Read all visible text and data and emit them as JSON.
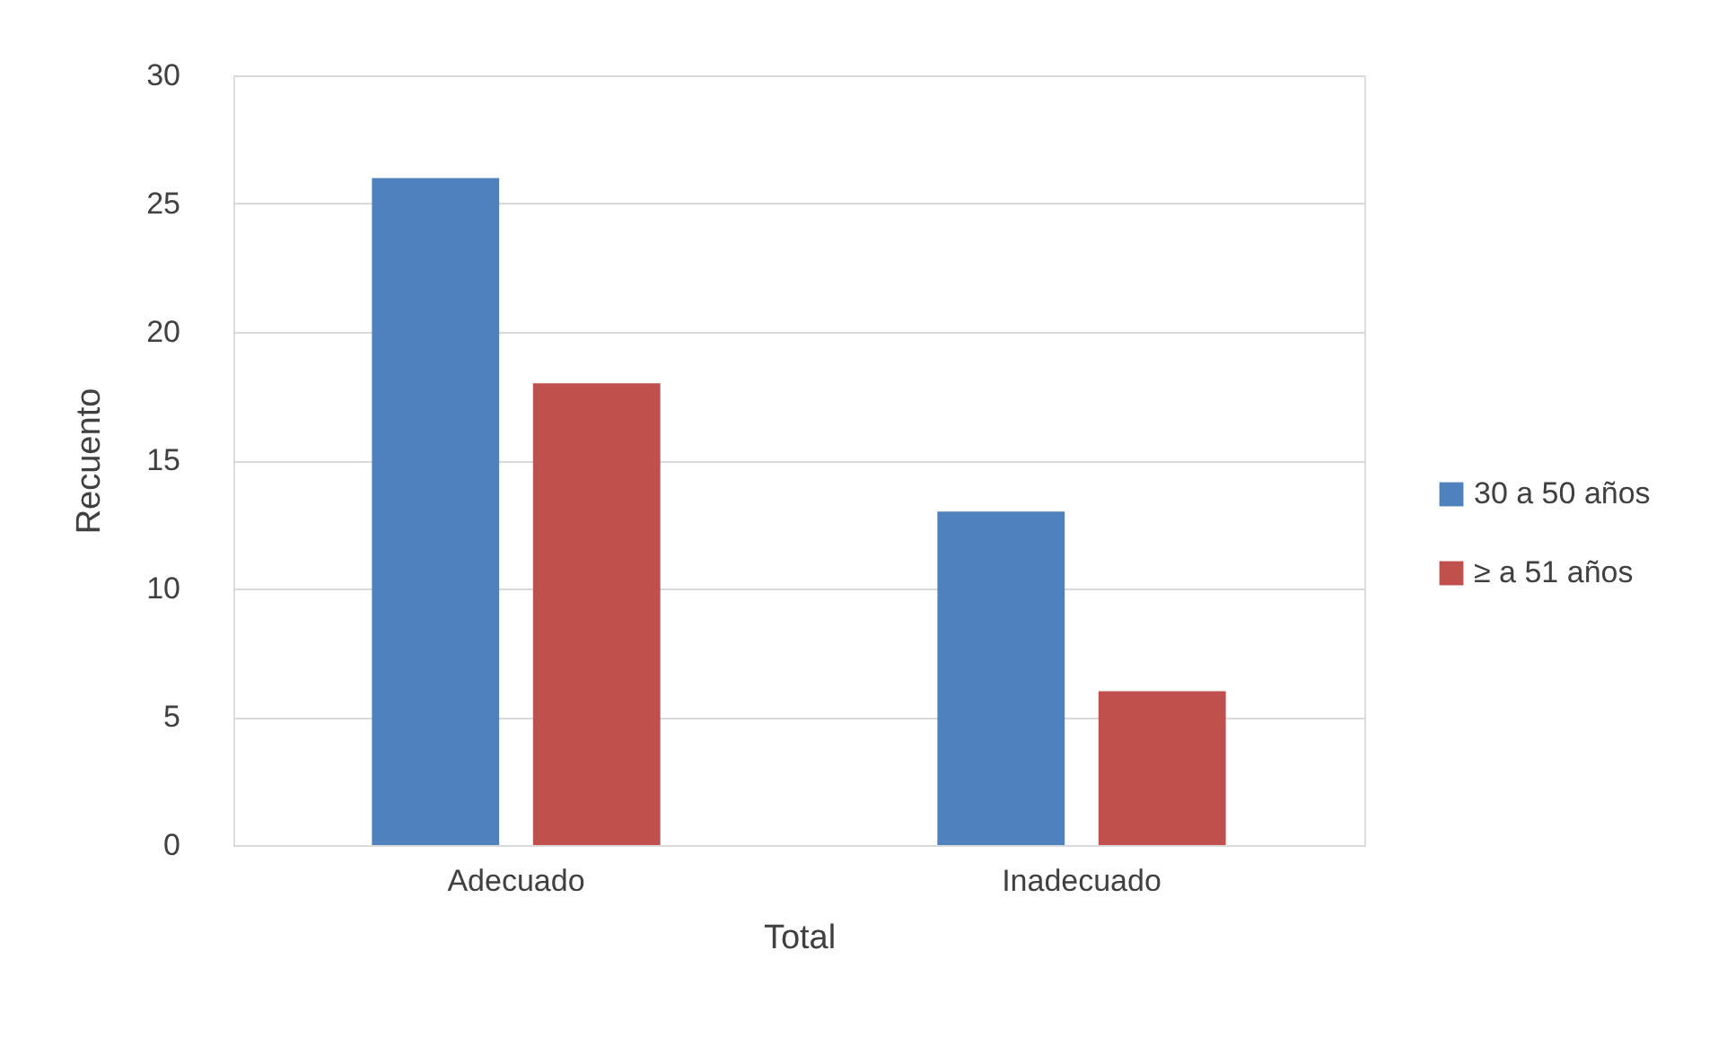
{
  "chart_data": {
    "type": "bar",
    "xlabel": "Total",
    "ylabel": "Recuento",
    "categories": [
      "Adecuado",
      "Inadecuado"
    ],
    "series": [
      {
        "name": "30 a 50 años",
        "color": "#4f81bd",
        "values": [
          26,
          13
        ]
      },
      {
        "name": "≥ a 51 años",
        "color": "#c0504d",
        "values": [
          18,
          6
        ]
      }
    ],
    "ylim": [
      0,
      30
    ],
    "yticks": [
      0,
      5,
      10,
      15,
      20,
      25,
      30
    ],
    "grid": "y",
    "legend": "right"
  }
}
